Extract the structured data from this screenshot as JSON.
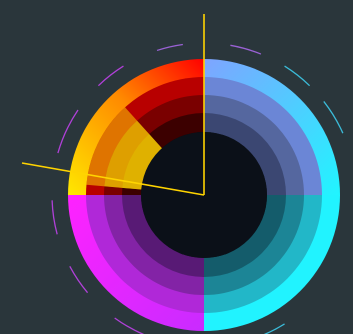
{
  "app": {
    "background_color": "#2a363b"
  },
  "color_wheel": {
    "rings": 5,
    "ring_colors": {
      "top_right": [
        "#7fa4ff",
        "#6b86d6",
        "#55679f",
        "#3b4772",
        "#141a2a"
      ],
      "bottom_right": [
        "#21f3ff",
        "#22b7c8",
        "#1c8596",
        "#145c6b",
        "#0c1921"
      ],
      "bottom_left": [
        "#d72bff",
        "#b028d8",
        "#8323a6",
        "#581a75",
        "#1e0b24"
      ],
      "top_left": [
        "#ff0000",
        "#b80000",
        "#7a0000",
        "#3c0000",
        "#120000"
      ],
      "accent_left": "#ffd400"
    },
    "pointer_color": "#ffd400",
    "pointer_angle_deg": 262,
    "dash_colors": [
      "#b040d8",
      "#3bbbd8",
      "#9a62d5"
    ]
  }
}
